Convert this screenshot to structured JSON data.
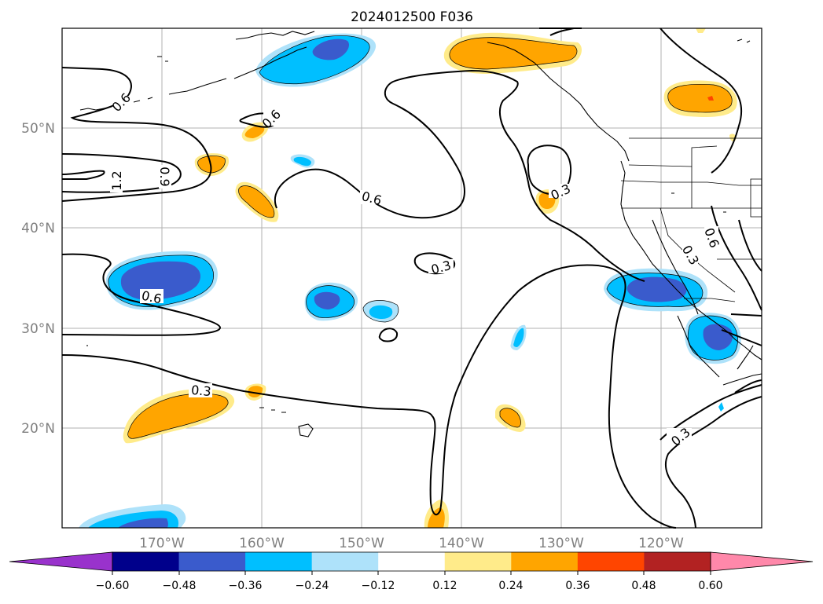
{
  "title": "2024012500 F036",
  "map": {
    "lon_labels": [
      "170°W",
      "160°W",
      "150°W",
      "140°W",
      "130°W",
      "120°W"
    ],
    "lat_labels": [
      "50°N",
      "40°N",
      "30°N",
      "20°N"
    ],
    "contour_labels": [
      "0.6",
      "0.6",
      "1.2",
      "0.9",
      "0.6",
      "0.3",
      "0.3",
      "0.6",
      "0.3",
      "0.3",
      "0.3",
      "0.6"
    ]
  },
  "colorbar": {
    "ticks": [
      "−0.60",
      "−0.48",
      "−0.36",
      "−0.24",
      "−0.12",
      "0.12",
      "0.24",
      "0.36",
      "0.48",
      "0.60"
    ],
    "colors": [
      "#9932cc",
      "#00008b",
      "#3a5bcc",
      "#00bfff",
      "#aee2fa",
      "#ffffff",
      "#ffeb8a",
      "#ffa500",
      "#ff4500",
      "#b22222",
      "#ff88aa"
    ]
  }
}
